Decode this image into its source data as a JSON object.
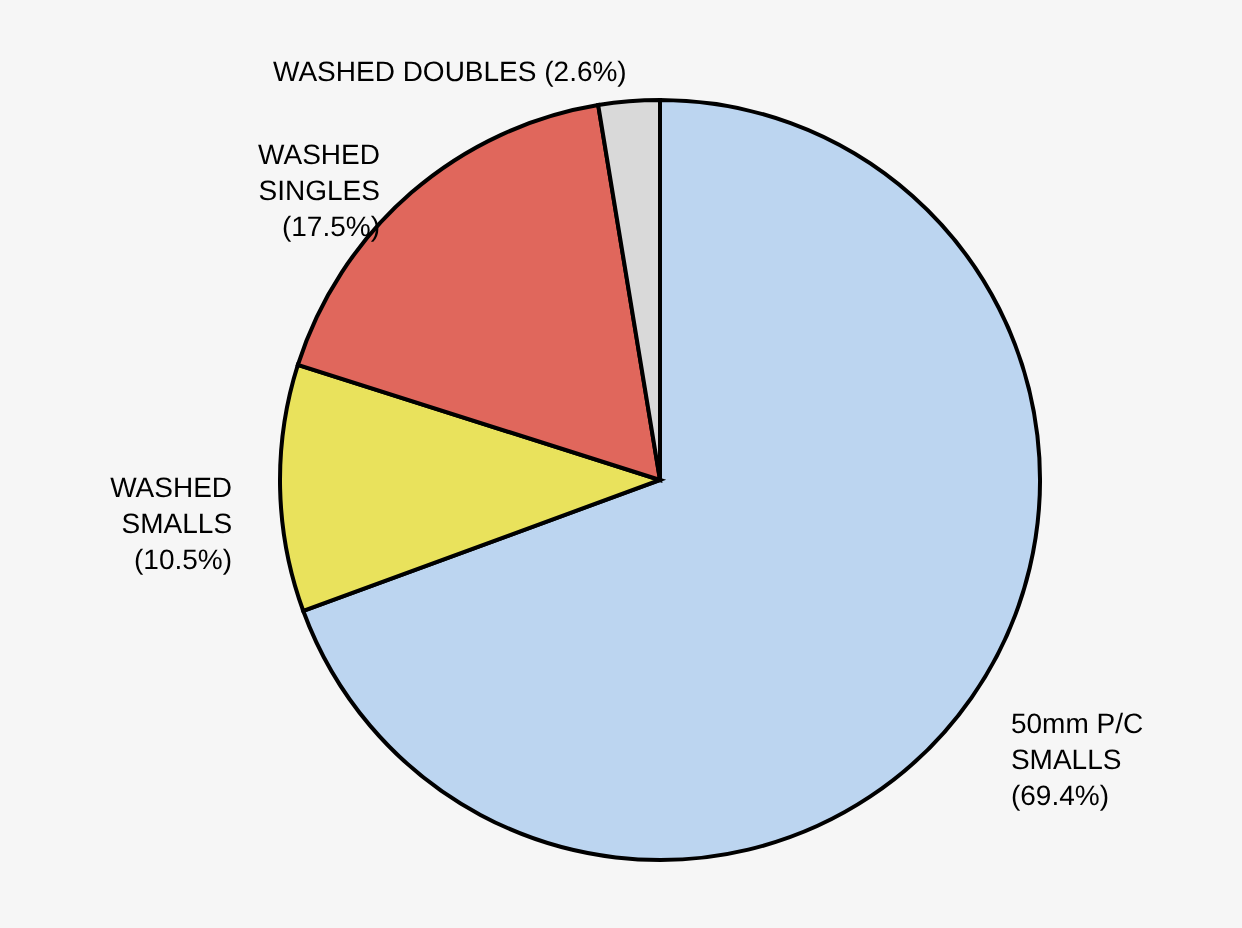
{
  "chart_data": {
    "type": "pie",
    "categories": [
      "50mm P/C SMALLS",
      "WASHED SMALLS",
      "WASHED SINGLES",
      "WASHED DOUBLES"
    ],
    "values": [
      69.4,
      10.5,
      17.5,
      2.6
    ],
    "value_labels": [
      "(69.4%)",
      "(10.5%)",
      "(17.5%)",
      "(2.6%)"
    ],
    "colors": [
      "#bcd5f0",
      "#e9e25c",
      "#e0675c",
      "#d9d9d9"
    ]
  }
}
